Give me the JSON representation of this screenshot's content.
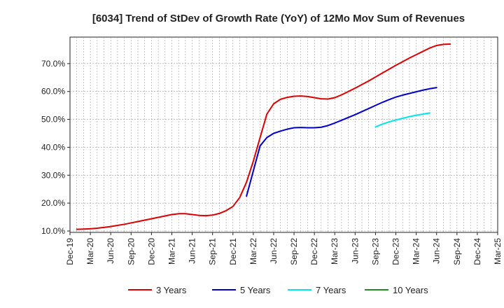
{
  "chart_data": {
    "type": "line",
    "title": "[6034]  Trend of StDev of Growth Rate (YoY) of 12Mo Mov Sum of Revenues",
    "xlabel": "",
    "ylabel": "",
    "x_ticks": [
      "Dec-19",
      "Mar-20",
      "Jun-20",
      "Sep-20",
      "Dec-20",
      "Mar-21",
      "Jun-21",
      "Sep-21",
      "Dec-21",
      "Mar-22",
      "Jun-22",
      "Sep-22",
      "Dec-22",
      "Mar-23",
      "Jun-23",
      "Sep-23",
      "Dec-23",
      "Mar-24",
      "Jun-24",
      "Sep-24",
      "Dec-24",
      "Mar-25"
    ],
    "y_ticks": [
      "10.0%",
      "20.0%",
      "30.0%",
      "40.0%",
      "50.0%",
      "60.0%",
      "70.0%"
    ],
    "ylim": [
      9.5,
      79.5
    ],
    "grid": true,
    "legend_position": "bottom",
    "series": [
      {
        "name": "3 Years",
        "color": "#dd0000",
        "values": [
          null,
          10.6,
          10.7,
          10.8,
          11.0,
          11.3,
          11.6,
          12.0,
          12.4,
          12.9,
          13.4,
          13.9,
          14.4,
          14.9,
          15.4,
          15.9,
          16.2,
          16.2,
          15.9,
          15.6,
          15.5,
          15.7,
          16.3,
          17.3,
          18.8,
          22.0,
          27.5,
          35.0,
          43.5,
          51.9,
          55.6,
          57.2,
          57.9,
          58.3,
          58.4,
          58.2,
          57.8,
          57.4,
          57.3,
          57.8,
          58.8,
          60.0,
          61.2,
          62.5,
          63.8,
          65.2,
          66.6,
          68.0,
          69.4,
          70.7,
          72.0,
          73.2,
          74.4,
          75.6,
          76.5,
          76.9,
          77.0
        ]
      },
      {
        "name": "5 Years",
        "color": "#0000cc",
        "values": [
          null,
          null,
          null,
          null,
          null,
          null,
          null,
          null,
          null,
          null,
          null,
          null,
          null,
          null,
          null,
          null,
          null,
          null,
          null,
          null,
          null,
          null,
          null,
          null,
          null,
          null,
          22.5,
          31.5,
          40.5,
          43.5,
          45.0,
          45.8,
          46.5,
          47.0,
          47.1,
          47.0,
          47.0,
          47.2,
          47.8,
          48.7,
          49.7,
          50.7,
          51.7,
          52.8,
          53.9,
          55.0,
          56.1,
          57.1,
          58.0,
          58.7,
          59.3,
          59.9,
          60.5,
          61.0,
          61.4,
          null,
          null
        ]
      },
      {
        "name": "7 Years",
        "color": "#00e5ee",
        "values": [
          null,
          null,
          null,
          null,
          null,
          null,
          null,
          null,
          null,
          null,
          null,
          null,
          null,
          null,
          null,
          null,
          null,
          null,
          null,
          null,
          null,
          null,
          null,
          null,
          null,
          null,
          null,
          null,
          null,
          null,
          null,
          null,
          null,
          null,
          null,
          null,
          null,
          null,
          null,
          null,
          null,
          null,
          null,
          null,
          null,
          47.3,
          48.3,
          49.1,
          49.8,
          50.4,
          51.0,
          51.5,
          51.9,
          52.3,
          null,
          null,
          null
        ]
      },
      {
        "name": "10 Years",
        "color": "#228b22",
        "values": []
      }
    ]
  }
}
